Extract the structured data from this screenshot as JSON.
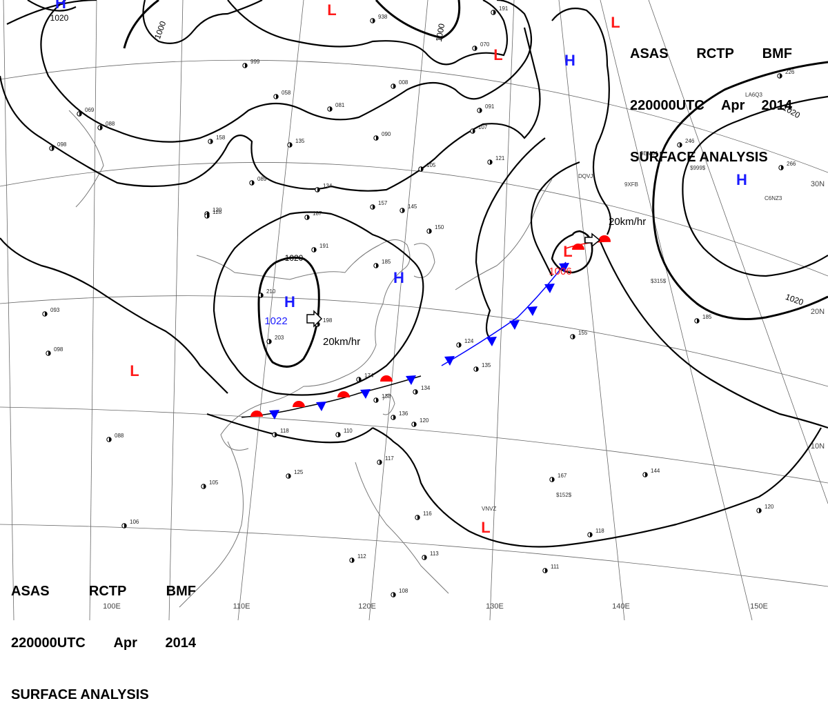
{
  "header": {
    "line1": [
      "ASAS",
      "RCTP",
      "BMF"
    ],
    "line2": [
      "220000UTC",
      "Apr",
      "2014"
    ],
    "line3": "SURFACE ANALYSIS"
  },
  "colors": {
    "high": "#1a1aff",
    "low": "#ff1a1a",
    "isobar": "#000000",
    "grid": "#555555"
  },
  "lon_labels": [
    "100E",
    "110E",
    "120E",
    "130E",
    "140E",
    "150E"
  ],
  "lat_labels": [
    "30N",
    "20N",
    "10N"
  ],
  "pressure_centers": [
    {
      "type": "H",
      "value": "1022"
    },
    {
      "type": "H",
      "value": ""
    },
    {
      "type": "H",
      "value": ""
    },
    {
      "type": "H",
      "value": ""
    },
    {
      "type": "H",
      "value": ""
    },
    {
      "type": "L",
      "value": "1006"
    },
    {
      "type": "L",
      "value": ""
    },
    {
      "type": "L",
      "value": ""
    },
    {
      "type": "L",
      "value": ""
    },
    {
      "type": "L",
      "value": ""
    },
    {
      "type": "L",
      "value": ""
    }
  ],
  "isobar_labels": [
    "1020",
    "1000",
    "1000",
    "1020",
    "1020",
    "1020"
  ],
  "motion_vectors": [
    "20km/hr",
    "20km/hr"
  ],
  "station_codes": [
    "DQVJ",
    "VNVZ",
    "$152$",
    "$315$",
    "$999$",
    "C6NZ3",
    "LA6Q3",
    "9EM04",
    "9XFB"
  ],
  "station_obs": [
    "938",
    "191",
    "070",
    "999",
    "008",
    "081",
    "058",
    "135",
    "090",
    "107",
    "105",
    "121",
    "089",
    "134",
    "157",
    "145",
    "150",
    "185",
    "191",
    "187",
    "120",
    "210",
    "203",
    "198",
    "174",
    "138",
    "136",
    "134",
    "124",
    "135",
    "118",
    "110",
    "125",
    "105",
    "093",
    "098",
    "088",
    "106",
    "120",
    "112",
    "117",
    "116",
    "113",
    "108",
    "167",
    "144",
    "155",
    "185",
    "111",
    "118",
    "120",
    "226",
    "246",
    "266",
    "091",
    "088",
    "069",
    "098",
    "158",
    "128"
  ]
}
